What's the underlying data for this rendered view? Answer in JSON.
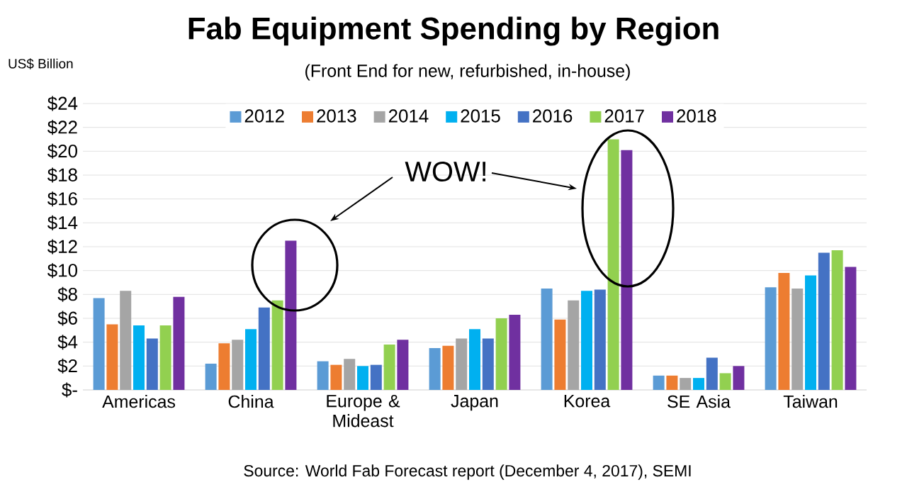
{
  "chart_data": {
    "type": "bar",
    "title": "Fab Equipment Spending by Region",
    "subtitle": "(Front End for new, refurbished, in-house)",
    "ylabel": "US$ Billion",
    "annotations": [
      "WOW!",
      "Source: World Fab Forecast report (December 4, 2017), SEMI"
    ],
    "categories": [
      "Americas",
      "China",
      "Europe & Mideast",
      "Japan",
      "Korea",
      "SE Asia",
      "Taiwan"
    ],
    "series": [
      {
        "name": "2012",
        "color": "#5b9bd5",
        "values": [
          7.7,
          2.2,
          2.4,
          3.5,
          8.5,
          1.2,
          8.6
        ]
      },
      {
        "name": "2013",
        "color": "#ed7d31",
        "values": [
          5.5,
          3.9,
          2.1,
          3.7,
          5.9,
          1.2,
          9.8
        ]
      },
      {
        "name": "2014",
        "color": "#a5a5a5",
        "values": [
          8.3,
          4.2,
          2.6,
          4.3,
          7.5,
          1.0,
          8.5
        ]
      },
      {
        "name": "2015",
        "color": "#00b0f0",
        "values": [
          5.4,
          5.1,
          2.0,
          5.1,
          8.3,
          1.0,
          9.6
        ]
      },
      {
        "name": "2016",
        "color": "#4472c4",
        "values": [
          4.3,
          6.9,
          2.1,
          4.3,
          8.4,
          2.7,
          11.5
        ]
      },
      {
        "name": "2017",
        "color": "#92d050",
        "values": [
          5.4,
          7.5,
          3.8,
          6.0,
          21.0,
          1.4,
          11.7
        ]
      },
      {
        "name": "2018",
        "color": "#7030a0",
        "values": [
          7.8,
          12.5,
          4.2,
          6.3,
          20.1,
          2.0,
          10.3
        ]
      }
    ],
    "ylim": [
      0,
      24
    ],
    "yticks": [
      {
        "value": 0,
        "label": "$-"
      },
      {
        "value": 2,
        "label": "$2"
      },
      {
        "value": 4,
        "label": "$4"
      },
      {
        "value": 6,
        "label": "$6"
      },
      {
        "value": 8,
        "label": "$8"
      },
      {
        "value": 10,
        "label": "$10"
      },
      {
        "value": 12,
        "label": "$12"
      },
      {
        "value": 14,
        "label": "$14"
      },
      {
        "value": 16,
        "label": "$16"
      },
      {
        "value": 18,
        "label": "$18"
      },
      {
        "value": 20,
        "label": "$20"
      },
      {
        "value": 22,
        "label": "$22"
      },
      {
        "value": 24,
        "label": "$24"
      }
    ],
    "grid": "y",
    "legend": "top"
  }
}
